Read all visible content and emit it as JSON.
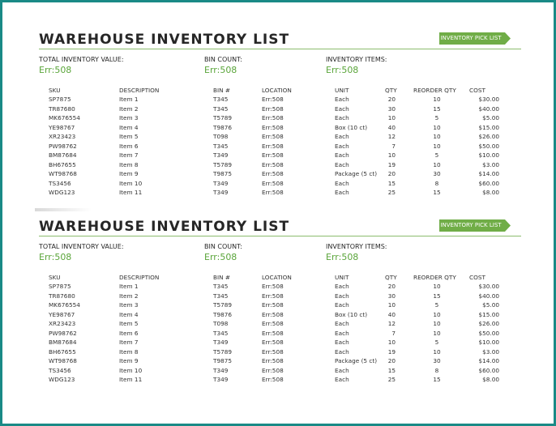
{
  "sheets": [
    {
      "title": "WAREHOUSE INVENTORY LIST",
      "pick_list_button": "INVENTORY PICK LIST",
      "stats": [
        {
          "label": "TOTAL INVENTORY VALUE:",
          "value": "Err:508"
        },
        {
          "label": "BIN COUNT:",
          "value": "Err:508"
        },
        {
          "label": "INVENTORY ITEMS:",
          "value": "Err:508"
        }
      ]
    },
    {
      "title": "WAREHOUSE INVENTORY LIST",
      "pick_list_button": "INVENTORY PICK LIST",
      "stats": [
        {
          "label": "TOTAL INVENTORY VALUE:",
          "value": "Err:508"
        },
        {
          "label": "BIN COUNT:",
          "value": "Err:508"
        },
        {
          "label": "INVENTORY ITEMS:",
          "value": "Err:508"
        }
      ]
    }
  ],
  "columns": [
    "SKU",
    "DESCRIPTION",
    "BIN #",
    "LOCATION",
    "UNIT",
    "QTY",
    "REORDER QTY",
    "COST"
  ],
  "rows": [
    [
      "SP7875",
      "Item 1",
      "T345",
      "Err:508",
      "Each",
      "20",
      "10",
      "$30.00"
    ],
    [
      "TR87680",
      "Item 2",
      "T345",
      "Err:508",
      "Each",
      "30",
      "15",
      "$40.00"
    ],
    [
      "MK676554",
      "Item 3",
      "T5789",
      "Err:508",
      "Each",
      "10",
      "5",
      "$5.00"
    ],
    [
      "YE98767",
      "Item 4",
      "T9876",
      "Err:508",
      "Box (10 ct)",
      "40",
      "10",
      "$15.00"
    ],
    [
      "XR23423",
      "Item 5",
      "T098",
      "Err:508",
      "Each",
      "12",
      "10",
      "$26.00"
    ],
    [
      "PW98762",
      "Item 6",
      "T345",
      "Err:508",
      "Each",
      "7",
      "10",
      "$50.00"
    ],
    [
      "BM87684",
      "Item 7",
      "T349",
      "Err:508",
      "Each",
      "10",
      "5",
      "$10.00"
    ],
    [
      "BH67655",
      "Item 8",
      "T5789",
      "Err:508",
      "Each",
      "19",
      "10",
      "$3.00"
    ],
    [
      "WT98768",
      "Item 9",
      "T9875",
      "Err:508",
      "Package (5 ct)",
      "20",
      "30",
      "$14.00"
    ],
    [
      "TS3456",
      "Item 10",
      "T349",
      "Err:508",
      "Each",
      "15",
      "8",
      "$60.00"
    ],
    [
      "WDG123",
      "Item 11",
      "T349",
      "Err:508",
      "Each",
      "25",
      "15",
      "$8.00"
    ]
  ],
  "colors": {
    "frame": "#1a8a86",
    "accent": "#70ad47",
    "value_text": "#5aa53a"
  }
}
